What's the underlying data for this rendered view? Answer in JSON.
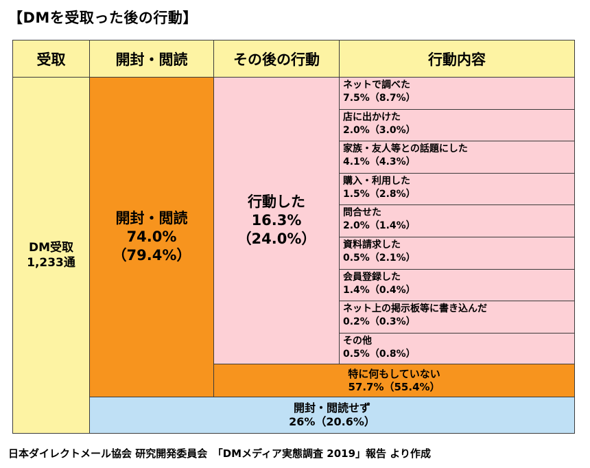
{
  "title": "【DMを受取った後の行動】",
  "headers": [
    "受取",
    "開封・閲読",
    "その後の行動",
    "行動内容"
  ],
  "received": {
    "label": "DM受取",
    "count": "1,233通"
  },
  "opened": {
    "label": "開封・閲読",
    "pct": "74.0%",
    "prev": "（79.4%）"
  },
  "acted": {
    "label": "行動した",
    "pct": "16.3%",
    "prev": "（24.0%）"
  },
  "actions": [
    {
      "label": "ネットで調べた",
      "value": "7.5%（8.7%）"
    },
    {
      "label": "店に出かけた",
      "value": "2.0%（3.0%）"
    },
    {
      "label": "家族・友人等との話題にした",
      "value": "4.1%（4.3%）"
    },
    {
      "label": "購入・利用した",
      "value": "1.5%（2.8%）"
    },
    {
      "label": "問合せた",
      "value": "2.0%（1.4%）"
    },
    {
      "label": "資料請求した",
      "value": "0.5%（2.1%）"
    },
    {
      "label": "会員登録した",
      "value": "1.4%（0.4%）"
    },
    {
      "label": "ネット上の掲示板等に書き込んだ",
      "value": "0.2%（0.3%）"
    },
    {
      "label": "その他",
      "value": "0.5%（0.8%）"
    }
  ],
  "no_action": {
    "label": "特に何もしていない",
    "value": "57.7%（55.4%）"
  },
  "not_opened": {
    "label": "開封・閲読せず",
    "value": "26%（20.6%）"
  },
  "footer": "日本ダイレクトメール協会 研究開発委員会　「DMメディア実態調査 2019」報告 より作成",
  "colors": {
    "header_bg": "#fdf3a3",
    "received_bg": "#fdf3a3",
    "opened_bg": "#f7941e",
    "acted_bg": "#fdd0d6",
    "not_opened_bg": "#bfe0f5",
    "border": "#3a3a3a"
  }
}
